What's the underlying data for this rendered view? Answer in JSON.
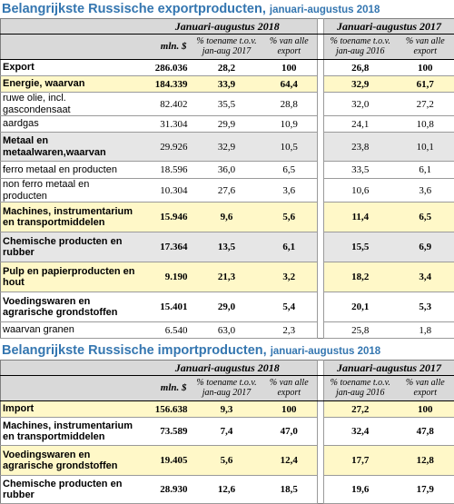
{
  "export_section": {
    "title": "Belangrijkste Russische exportproducten,",
    "subtitle": "januari-augustus 2018",
    "period_2018": "Januari-augustus 2018",
    "period_2017": "Januari-augustus 2017",
    "unit": "mln. $",
    "col_change_2018": "% toename t.o.v. jan-aug 2017",
    "col_share_2018": "% van alle export",
    "col_change_2017": "% toename t.o.v. jan-aug 2016",
    "col_share_2017": "% van alle export",
    "rows": [
      {
        "label": "Export",
        "value": "286.036",
        "change2018": "28,2",
        "share2018": "100",
        "change2017": "26,8",
        "share2017": "100"
      },
      {
        "label": "Energie, waarvan",
        "value": "184.339",
        "change2018": "33,9",
        "share2018": "64,4",
        "change2017": "32,9",
        "share2017": "61,7"
      },
      {
        "label": "ruwe olie, incl. gascondensaat",
        "value": "82.402",
        "change2018": "35,5",
        "share2018": "28,8",
        "change2017": "32,0",
        "share2017": "27,2"
      },
      {
        "label": "aardgas",
        "value": "31.304",
        "change2018": "29,9",
        "share2018": "10,9",
        "change2017": "24,1",
        "share2017": "10,8"
      },
      {
        "label": "Metaal en metaalwaren,waarvan",
        "value": "29.926",
        "change2018": "32,9",
        "share2018": "10,5",
        "change2017": "23,8",
        "share2017": "10,1"
      },
      {
        "label": "ferro metaal en producten",
        "value": "18.596",
        "change2018": "36,0",
        "share2018": "6,5",
        "change2017": "33,5",
        "share2017": "6,1"
      },
      {
        "label": "non ferro metaal en producten",
        "value": "10.304",
        "change2018": "27,6",
        "share2018": "3,6",
        "change2017": "10,6",
        "share2017": "3,6"
      },
      {
        "label": "Machines, instrumentarium en transportmiddelen",
        "value": "15.946",
        "change2018": "9,6",
        "share2018": "5,6",
        "change2017": "11,4",
        "share2017": "6,5"
      },
      {
        "label": "Chemische producten en rubber",
        "value": "17.364",
        "change2018": "13,5",
        "share2018": "6,1",
        "change2017": "15,5",
        "share2017": "6,9"
      },
      {
        "label": "Pulp en papierproducten en hout",
        "value": "9.190",
        "change2018": "21,3",
        "share2018": "3,2",
        "change2017": "18,2",
        "share2017": "3,4"
      },
      {
        "label": "Voedingswaren en agrarische grondstoffen",
        "value": "15.401",
        "change2018": "29,0",
        "share2018": "5,4",
        "change2017": "20,1",
        "share2017": "5,3"
      },
      {
        "label": "waarvan granen",
        "value": "6.540",
        "change2018": "63,0",
        "share2018": "2,3",
        "change2017": "25,8",
        "share2017": "1,8"
      }
    ]
  },
  "import_section": {
    "title": "Belangrijkste Russische importproducten,",
    "subtitle": "januari-augustus 2018",
    "period_2018": "Januari-augustus 2018",
    "period_2017": "Januari-augustus 2017",
    "unit": "mln. $",
    "col_change_2018": "% toename t.o.v. jan-aug 2017",
    "col_share_2018": "% van alle export",
    "col_change_2017": "% toename t.o.v. jan-aug 2016",
    "col_share_2017": "% van alle export",
    "rows": [
      {
        "label": "Import",
        "value": "156.638",
        "change2018": "9,3",
        "share2018": "100",
        "change2017": "27,2",
        "share2017": "100"
      },
      {
        "label": "Machines, instrumentarium en transportmiddelen",
        "value": "73.589",
        "change2018": "7,4",
        "share2018": "47,0",
        "change2017": "32,4",
        "share2017": "47,8"
      },
      {
        "label": "Voedingswaren en agrarische grondstoffen",
        "value": "19.405",
        "change2018": "5,6",
        "share2018": "12,4",
        "change2017": "17,7",
        "share2017": "12,8"
      },
      {
        "label": "Chemische producten en rubber",
        "value": "28.930",
        "change2018": "12,6",
        "share2018": "18,5",
        "change2017": "19,6",
        "share2017": "17,9"
      }
    ]
  }
}
